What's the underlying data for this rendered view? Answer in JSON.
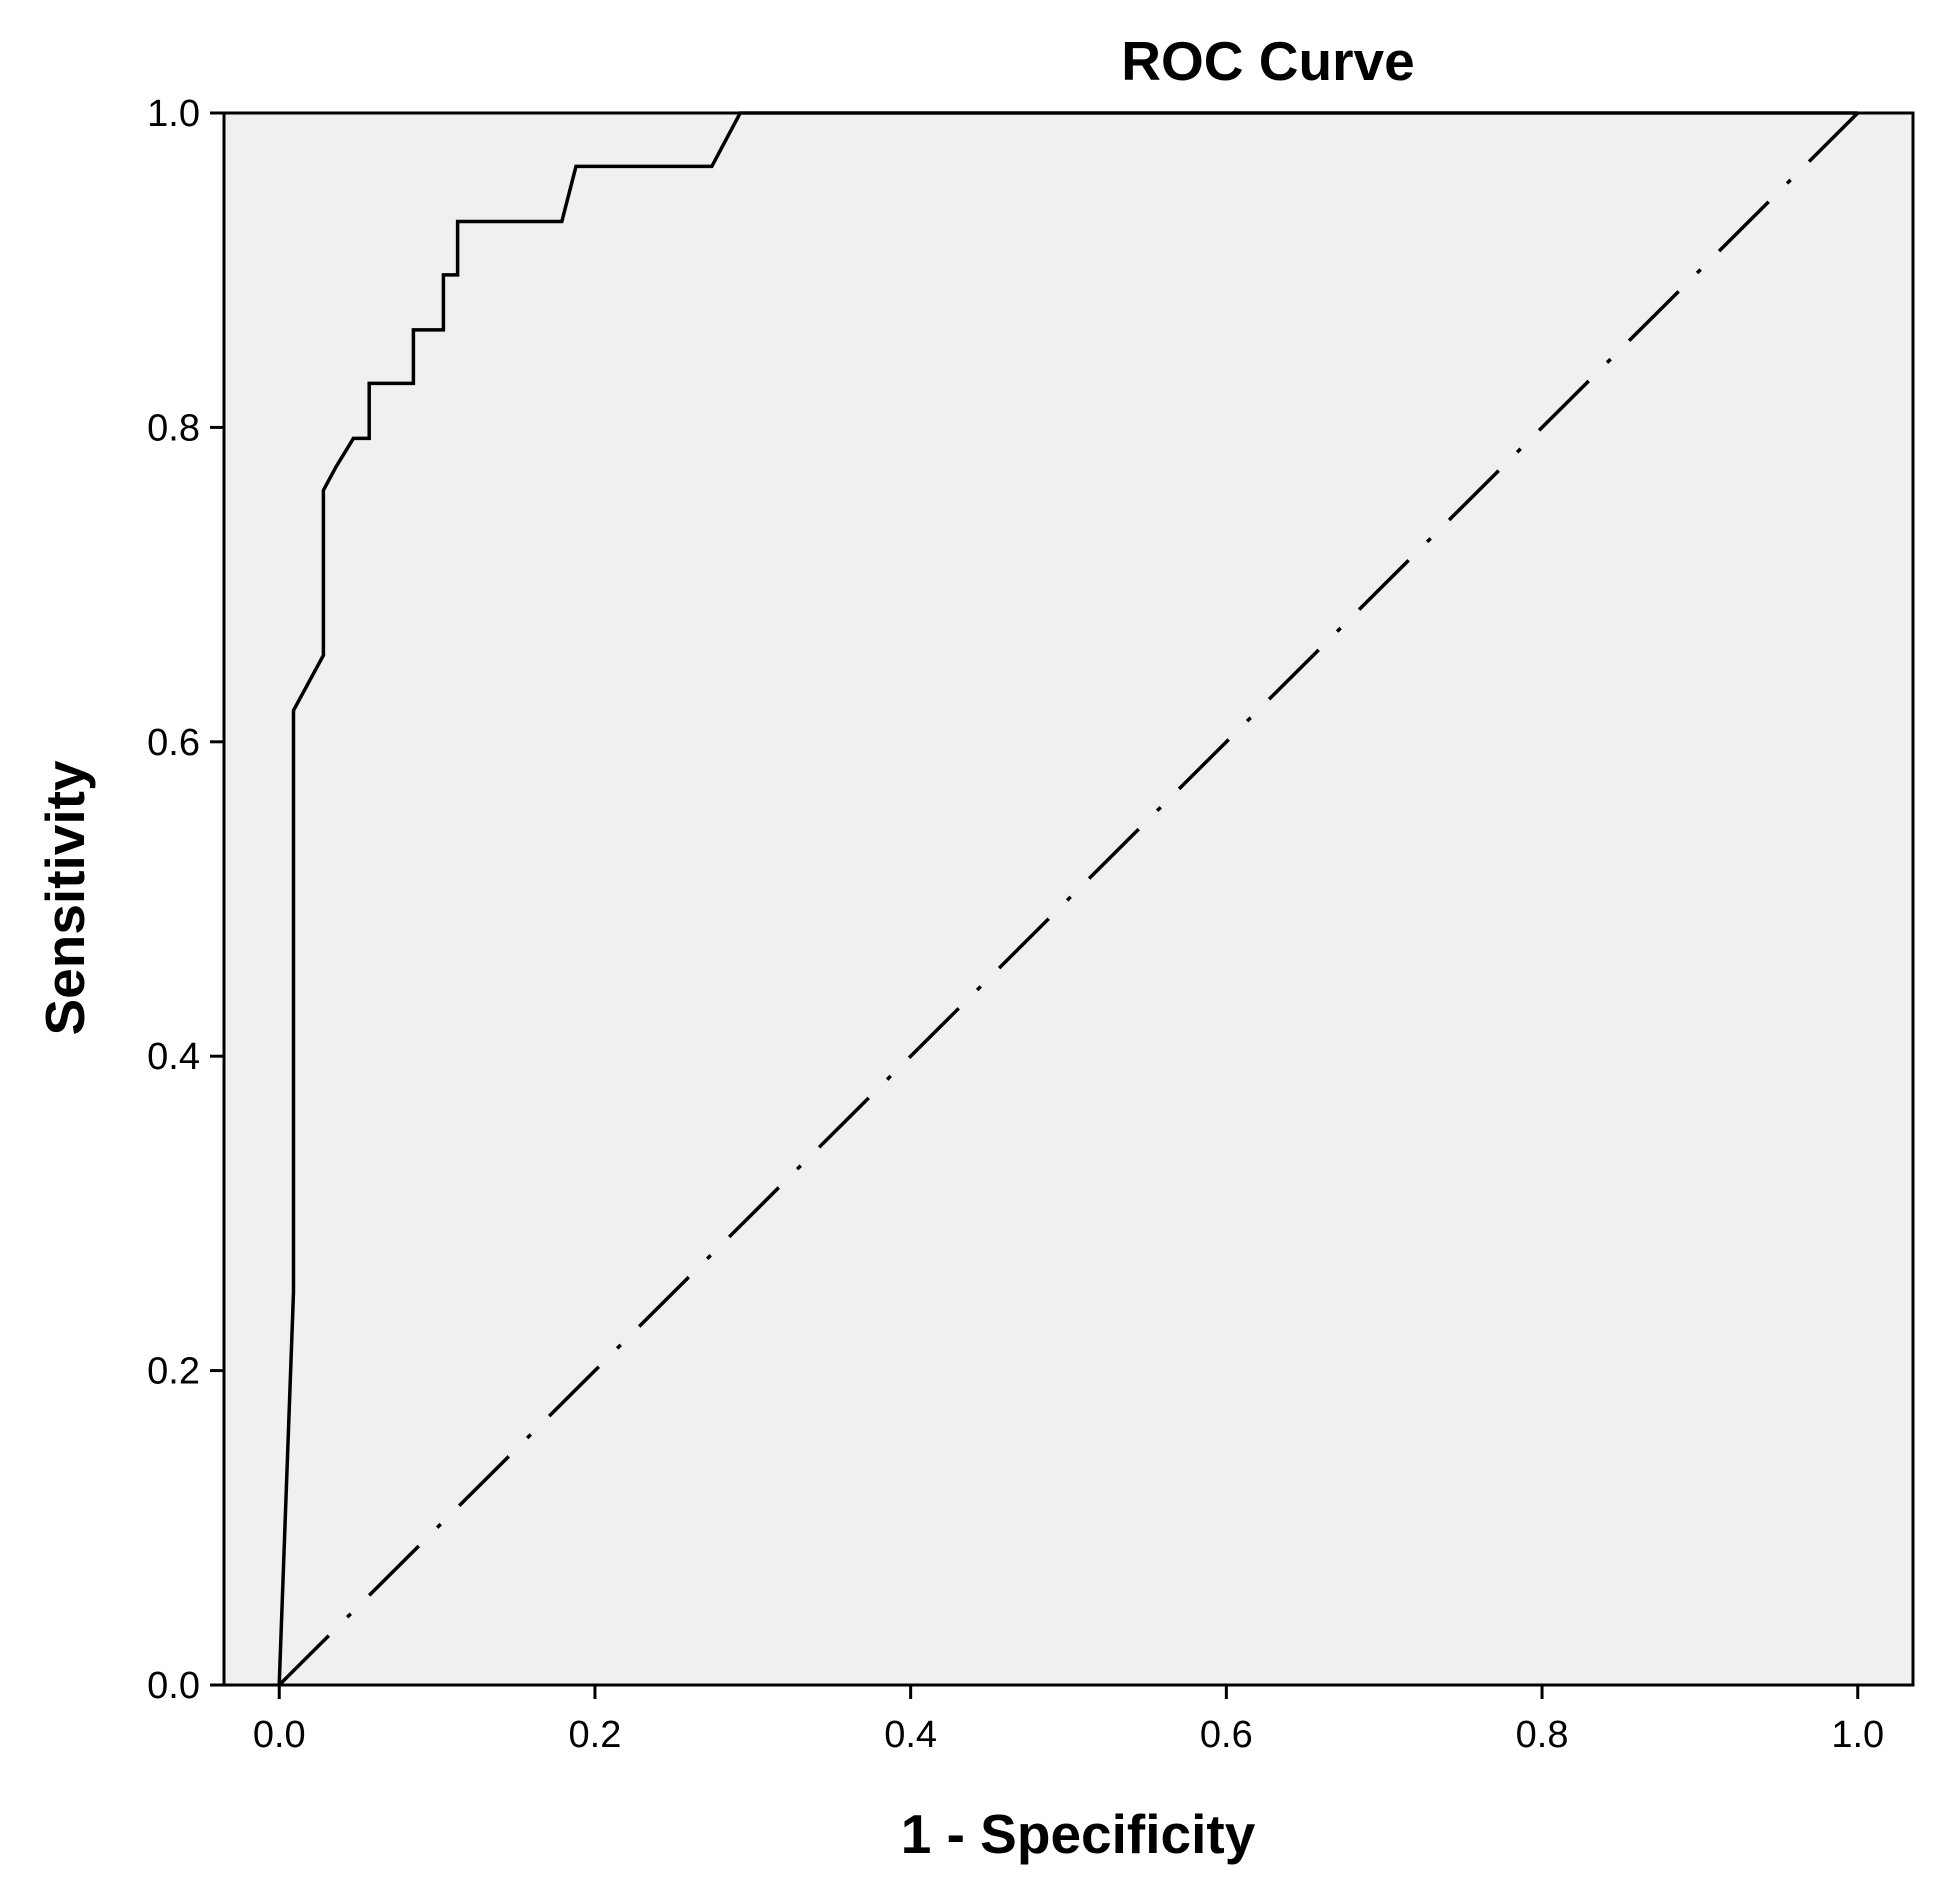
{
  "chart_data": {
    "type": "line",
    "title": "ROC Curve",
    "xlabel": "1 - Specificity",
    "ylabel": "Sensitivity",
    "xlim": [
      -0.035,
      1.035
    ],
    "ylim": [
      0.0,
      1.0
    ],
    "x_ticks": [
      0.0,
      0.2,
      0.4,
      0.6,
      0.8,
      1.0
    ],
    "y_ticks": [
      0.0,
      0.2,
      0.4,
      0.6,
      0.8,
      1.0
    ],
    "x_tick_labels": [
      "0.0",
      "0.2",
      "0.4",
      "0.6",
      "0.8",
      "1.0"
    ],
    "y_tick_labels": [
      "0.0",
      "0.2",
      "0.4",
      "0.6",
      "0.8",
      "1.0"
    ],
    "grid": false,
    "legend": "none",
    "plot_background": "#f0f0f0",
    "series": [
      {
        "line_style": "solid",
        "color": "#000000",
        "points": [
          [
            0.0,
            0.0
          ],
          [
            0.009,
            0.25
          ],
          [
            0.009,
            0.62
          ],
          [
            0.028,
            0.655
          ],
          [
            0.028,
            0.76
          ],
          [
            0.036,
            0.775
          ],
          [
            0.047,
            0.793
          ],
          [
            0.057,
            0.793
          ],
          [
            0.057,
            0.828
          ],
          [
            0.085,
            0.828
          ],
          [
            0.085,
            0.862
          ],
          [
            0.104,
            0.862
          ],
          [
            0.104,
            0.897
          ],
          [
            0.113,
            0.897
          ],
          [
            0.113,
            0.931
          ],
          [
            0.179,
            0.931
          ],
          [
            0.188,
            0.966
          ],
          [
            0.274,
            0.966
          ],
          [
            0.292,
            1.0
          ],
          [
            1.0,
            1.0
          ]
        ]
      },
      {
        "line_style": "dash-dot",
        "color": "#000000",
        "points": [
          [
            0.0,
            0.0
          ],
          [
            1.0,
            1.0
          ]
        ]
      }
    ]
  }
}
